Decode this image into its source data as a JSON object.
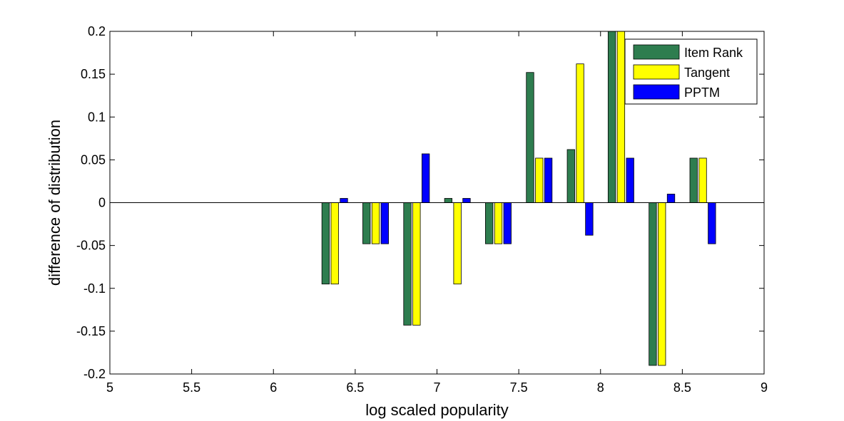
{
  "chart_data": {
    "type": "bar",
    "title": "",
    "xlabel": "log scaled popularity",
    "ylabel": "difference of distribution",
    "xlim": [
      5,
      9
    ],
    "ylim": [
      -0.2,
      0.2
    ],
    "xticks": [
      "5",
      "5.5",
      "6",
      "6.5",
      "7",
      "7.5",
      "8",
      "8.5",
      "9"
    ],
    "yticks": [
      "-0.2",
      "-0.15",
      "-0.1",
      "-0.05",
      "0",
      "0.05",
      "0.1",
      "0.15",
      "0.2"
    ],
    "x": [
      6.375,
      6.625,
      6.875,
      7.125,
      7.375,
      7.625,
      7.875,
      8.125,
      8.375,
      8.625
    ],
    "series": [
      {
        "name": "Item Rank",
        "color": "#2e7d4f",
        "values": [
          -0.095,
          -0.048,
          -0.143,
          0.005,
          -0.048,
          0.152,
          0.062,
          0.2,
          -0.19,
          0.052
        ]
      },
      {
        "name": "Tangent",
        "color": "#ffff00",
        "values": [
          -0.095,
          -0.048,
          -0.143,
          -0.095,
          -0.048,
          0.052,
          0.162,
          0.2,
          -0.19,
          0.052
        ]
      },
      {
        "name": "PPTM",
        "color": "#0000ff",
        "values": [
          0.005,
          -0.048,
          0.057,
          0.005,
          -0.048,
          0.052,
          -0.038,
          0.052,
          0.01,
          -0.048
        ]
      }
    ],
    "grid": false,
    "legend_position": "top-right"
  }
}
